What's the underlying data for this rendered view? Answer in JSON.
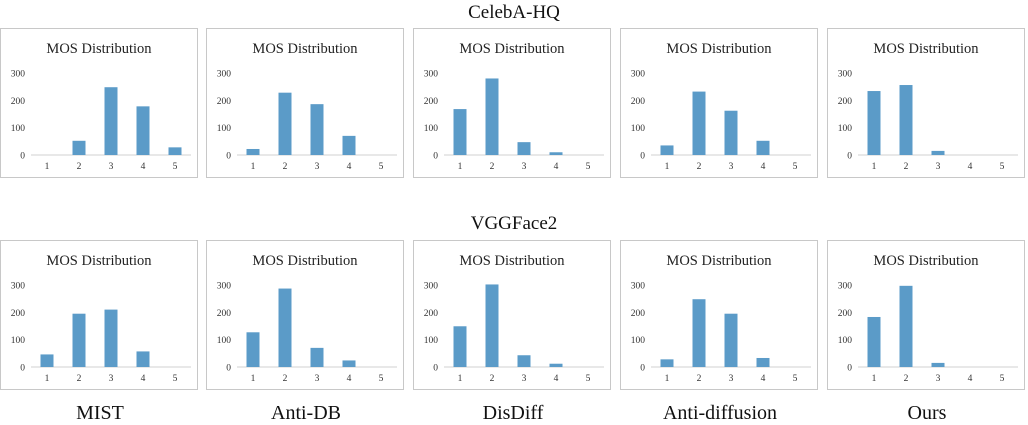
{
  "sections": [
    "CelebA-HQ",
    "VGGFace2"
  ],
  "methods": [
    "MIST",
    "Anti-DB",
    "DisDiff",
    "Anti-diffusion",
    "Ours"
  ],
  "colors": {
    "bar": "#5b9bc8",
    "axis": "#d0d0d0",
    "border": "#c8c8c8"
  },
  "chart_data": [
    {
      "type": "bar",
      "dataset": "CelebA-HQ",
      "method": "MIST",
      "title": "MOS Distribution",
      "categories": [
        "1",
        "2",
        "3",
        "4",
        "5"
      ],
      "values": [
        0,
        52,
        248,
        178,
        28
      ],
      "ylim": [
        0,
        300
      ],
      "yticks": [
        "0",
        "100",
        "200",
        "300"
      ]
    },
    {
      "type": "bar",
      "dataset": "CelebA-HQ",
      "method": "Anti-DB",
      "title": "MOS Distribution",
      "categories": [
        "1",
        "2",
        "3",
        "4",
        "5"
      ],
      "values": [
        22,
        228,
        186,
        70,
        0
      ],
      "ylim": [
        0,
        300
      ],
      "yticks": [
        "0",
        "100",
        "200",
        "300"
      ]
    },
    {
      "type": "bar",
      "dataset": "CelebA-HQ",
      "method": "DisDiff",
      "title": "MOS Distribution",
      "categories": [
        "1",
        "2",
        "3",
        "4",
        "5"
      ],
      "values": [
        168,
        280,
        47,
        10,
        0
      ],
      "ylim": [
        0,
        300
      ],
      "yticks": [
        "0",
        "100",
        "200",
        "300"
      ]
    },
    {
      "type": "bar",
      "dataset": "CelebA-HQ",
      "method": "Anti-diffusion",
      "title": "MOS Distribution",
      "categories": [
        "1",
        "2",
        "3",
        "4",
        "5"
      ],
      "values": [
        35,
        232,
        162,
        52,
        0
      ],
      "ylim": [
        0,
        300
      ],
      "yticks": [
        "0",
        "100",
        "200",
        "300"
      ]
    },
    {
      "type": "bar",
      "dataset": "CelebA-HQ",
      "method": "Ours",
      "title": "MOS Distribution",
      "categories": [
        "1",
        "2",
        "3",
        "4",
        "5"
      ],
      "values": [
        234,
        256,
        15,
        0,
        0
      ],
      "ylim": [
        0,
        300
      ],
      "yticks": [
        "0",
        "100",
        "200",
        "300"
      ]
    },
    {
      "type": "bar",
      "dataset": "VGGFace2",
      "method": "MIST",
      "title": "MOS Distribution",
      "categories": [
        "1",
        "2",
        "3",
        "4",
        "5"
      ],
      "values": [
        46,
        195,
        210,
        57,
        0
      ],
      "ylim": [
        0,
        300
      ],
      "yticks": [
        "0",
        "100",
        "200",
        "300"
      ]
    },
    {
      "type": "bar",
      "dataset": "VGGFace2",
      "method": "Anti-DB",
      "title": "MOS Distribution",
      "categories": [
        "1",
        "2",
        "3",
        "4",
        "5"
      ],
      "values": [
        127,
        287,
        70,
        24,
        0
      ],
      "ylim": [
        0,
        300
      ],
      "yticks": [
        "0",
        "100",
        "200",
        "300"
      ]
    },
    {
      "type": "bar",
      "dataset": "VGGFace2",
      "method": "DisDiff",
      "title": "MOS Distribution",
      "categories": [
        "1",
        "2",
        "3",
        "4",
        "5"
      ],
      "values": [
        149,
        302,
        43,
        12,
        0
      ],
      "ylim": [
        0,
        300
      ],
      "yticks": [
        "0",
        "100",
        "200",
        "300"
      ]
    },
    {
      "type": "bar",
      "dataset": "VGGFace2",
      "method": "Anti-diffusion",
      "title": "MOS Distribution",
      "categories": [
        "1",
        "2",
        "3",
        "4",
        "5"
      ],
      "values": [
        28,
        248,
        195,
        33,
        0
      ],
      "ylim": [
        0,
        300
      ],
      "yticks": [
        "0",
        "100",
        "200",
        "300"
      ]
    },
    {
      "type": "bar",
      "dataset": "VGGFace2",
      "method": "Ours",
      "title": "MOS Distribution",
      "categories": [
        "1",
        "2",
        "3",
        "4",
        "5"
      ],
      "values": [
        183,
        297,
        15,
        0,
        0
      ],
      "ylim": [
        0,
        300
      ],
      "yticks": [
        "0",
        "100",
        "200",
        "300"
      ]
    }
  ]
}
